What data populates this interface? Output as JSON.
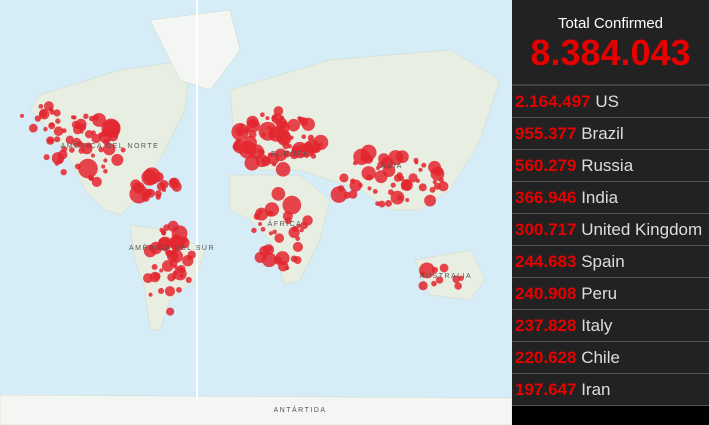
{
  "map": {
    "labels": [
      "AMÉRICA DEL NORTE",
      "EUROPA",
      "ASIA",
      "ÁFRICA",
      "AMÉRICA DEL SUR",
      "AUSTRALIA",
      "ANTÁRTIDA"
    ]
  },
  "panel": {
    "title": "Total Confirmed",
    "total": "8.384.043",
    "rows": [
      {
        "count": "2.164.497",
        "country": "US"
      },
      {
        "count": "955.377",
        "country": "Brazil"
      },
      {
        "count": "560.279",
        "country": "Russia"
      },
      {
        "count": "366.946",
        "country": "India"
      },
      {
        "count": "300.717",
        "country": "United Kingdom"
      },
      {
        "count": "244.683",
        "country": "Spain"
      },
      {
        "count": "240.908",
        "country": "Peru"
      },
      {
        "count": "237.828",
        "country": "Italy"
      },
      {
        "count": "220.628",
        "country": "Chile"
      },
      {
        "count": "197.647",
        "country": "Iran"
      }
    ]
  }
}
